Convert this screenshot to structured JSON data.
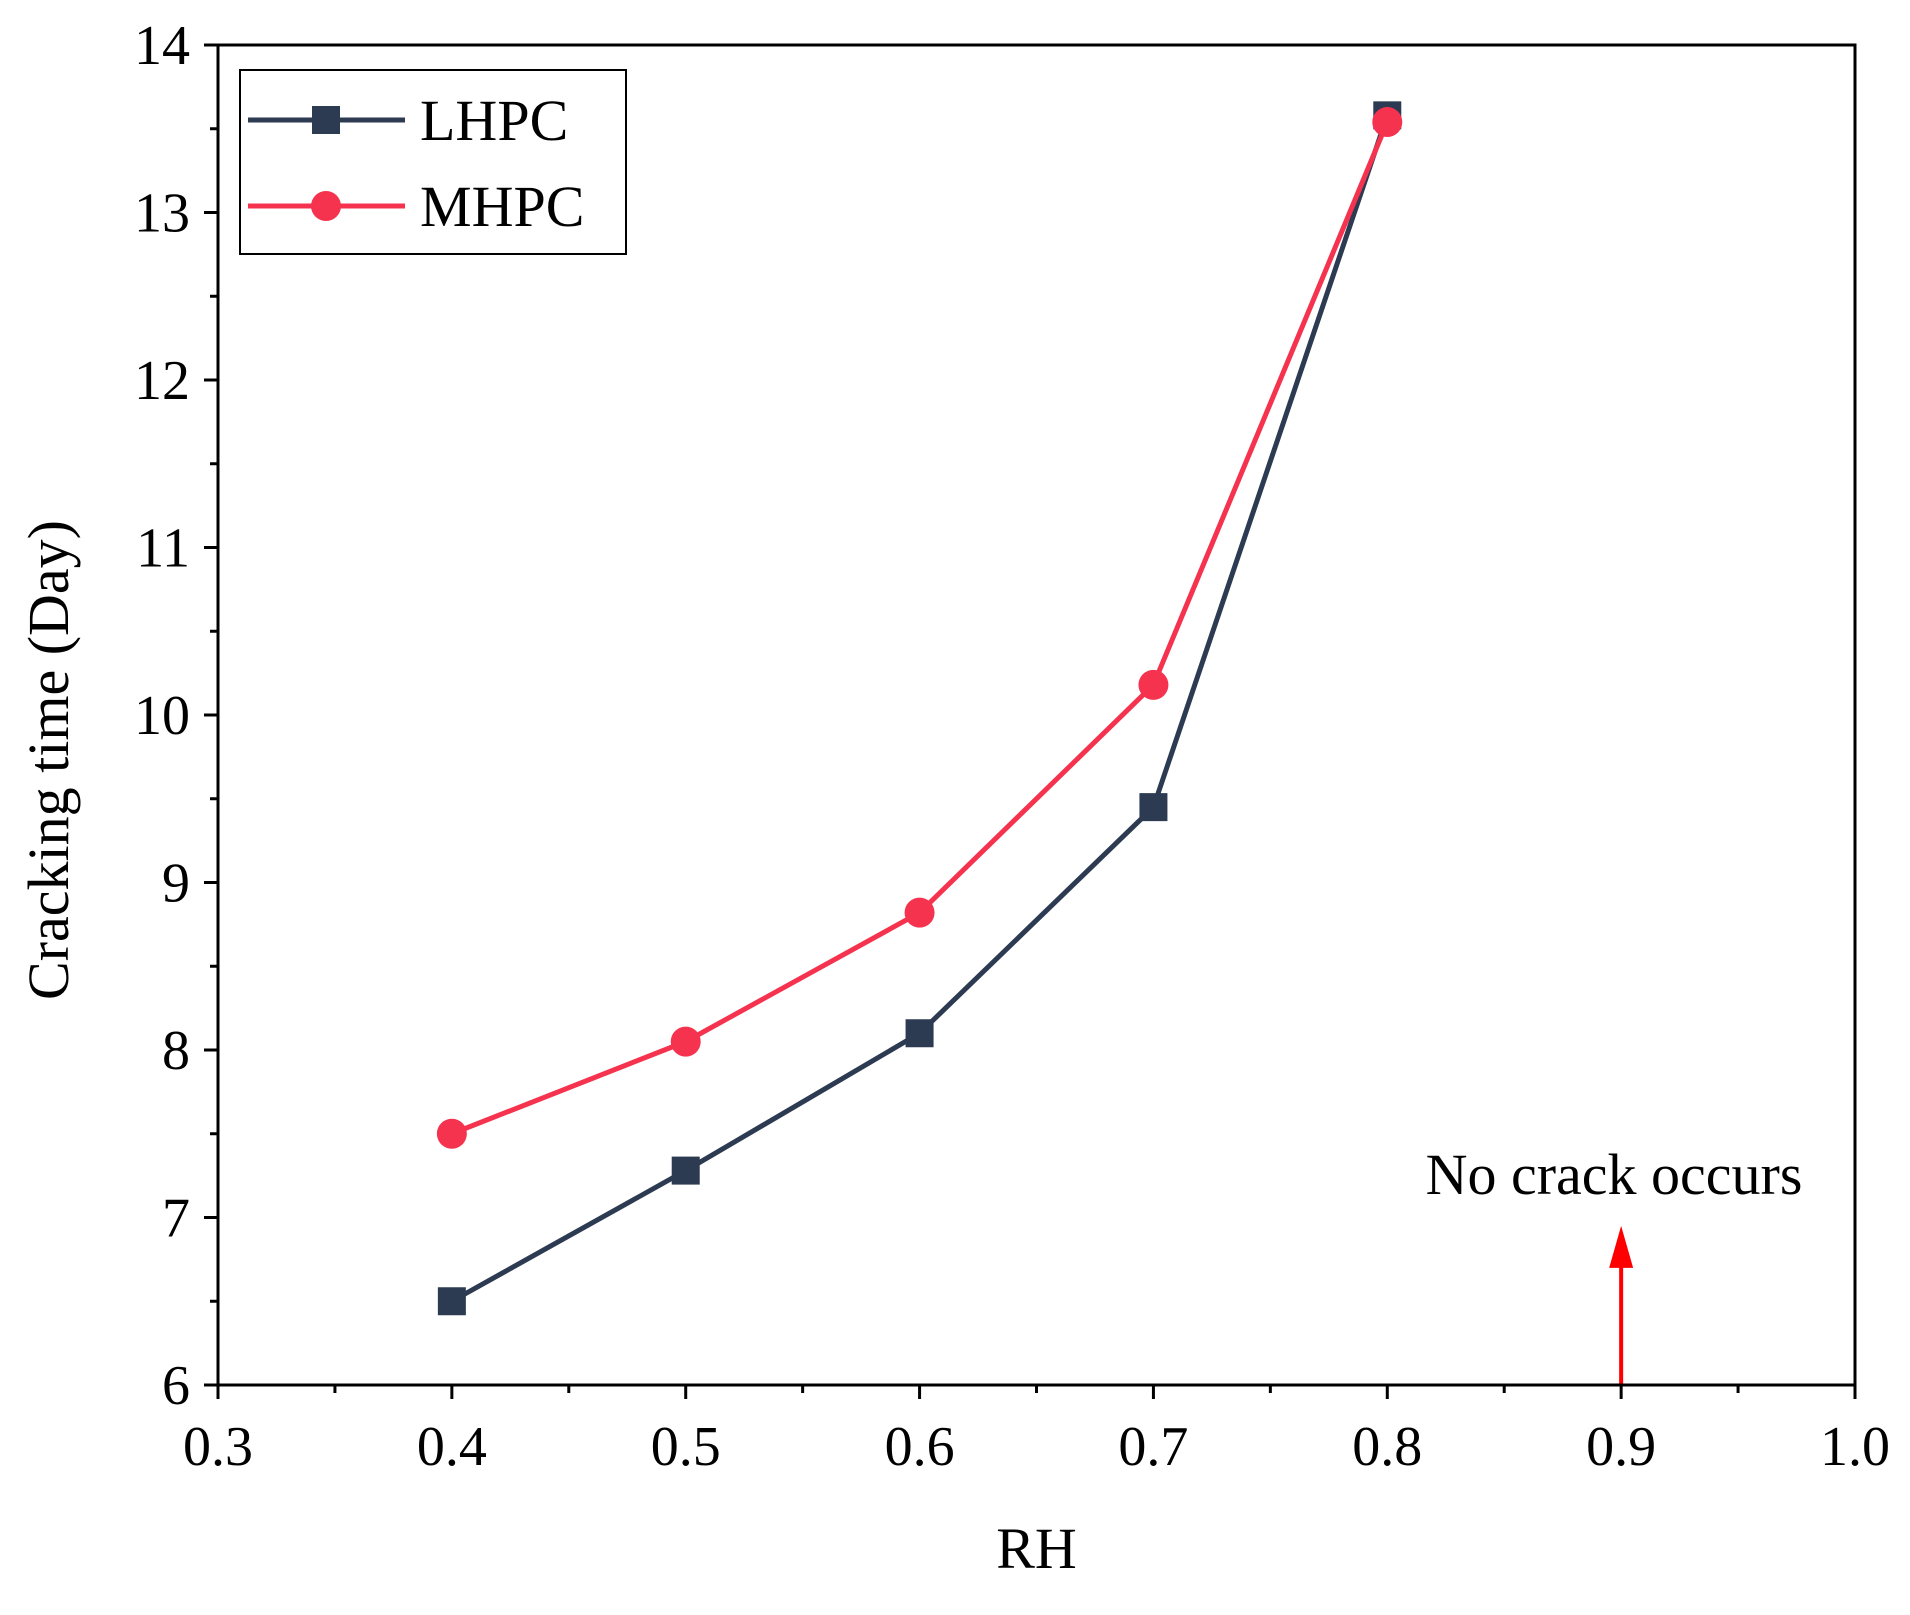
{
  "chart_data": {
    "type": "line",
    "title": "",
    "xlabel": "RH",
    "ylabel": "Cracking time (Day)",
    "xlim": [
      0.3,
      1.0
    ],
    "ylim": [
      6,
      14
    ],
    "grid": false,
    "legend_position": "top-left",
    "x_ticks": [
      0.3,
      0.4,
      0.5,
      0.6,
      0.7,
      0.8,
      0.9,
      1.0
    ],
    "x_tick_labels": [
      "0.3",
      "0.4",
      "0.5",
      "0.6",
      "0.7",
      "0.8",
      "0.9",
      "1.0"
    ],
    "y_ticks": [
      6,
      7,
      8,
      9,
      10,
      11,
      12,
      13,
      14
    ],
    "y_tick_labels": [
      "6",
      "7",
      "8",
      "9",
      "10",
      "11",
      "12",
      "13",
      "14"
    ],
    "x_minor_ticks": [
      0.35,
      0.45,
      0.55,
      0.65,
      0.75,
      0.85,
      0.95
    ],
    "y_minor_ticks": [
      6.5,
      7.5,
      8.5,
      9.5,
      10.5,
      11.5,
      12.5,
      13.5
    ],
    "x": [
      0.4,
      0.5,
      0.6,
      0.7,
      0.8
    ],
    "series": [
      {
        "name": "LHPC",
        "marker": "square",
        "color": "#2d3b52",
        "values": [
          6.5,
          7.28,
          8.1,
          9.45,
          13.58
        ]
      },
      {
        "name": "MHPC",
        "marker": "circle",
        "color": "#f5334f",
        "values": [
          7.5,
          8.05,
          8.82,
          10.18,
          13.54
        ]
      }
    ],
    "annotation": {
      "text": "No crack occurs",
      "arrow_x": 0.9,
      "arrow_y_from": 6.0,
      "arrow_y_to": 6.95,
      "color": "#ff0000"
    }
  }
}
